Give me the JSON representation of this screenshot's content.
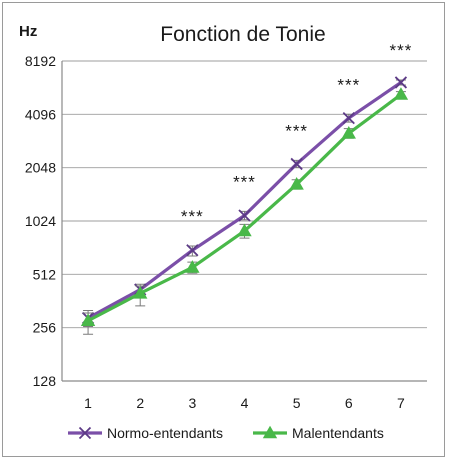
{
  "chart_data": {
    "type": "line",
    "title": "Fonction de Tonie",
    "ylabel": "Hz",
    "xlabel": "",
    "y_scale": "log2",
    "ylim": [
      128,
      8192
    ],
    "y_ticks": [
      "128",
      "256",
      "512",
      "1024",
      "2048",
      "4096",
      "8192"
    ],
    "y_tick_values": [
      128,
      256,
      512,
      1024,
      2048,
      4096,
      8192
    ],
    "x": [
      1,
      2,
      3,
      4,
      5,
      6,
      7
    ],
    "x_ticks": [
      "1",
      "2",
      "3",
      "4",
      "5",
      "6",
      "7"
    ],
    "grid": "horizontal",
    "legend_position": "bottom",
    "series": [
      {
        "name": "Normo-entendants",
        "color": "#7b4fa8",
        "marker": "x",
        "values": [
          290,
          420,
          700,
          1100,
          2150,
          3900,
          6200
        ],
        "err_low": [
          260,
          380,
          650,
          1040,
          2050,
          3700,
          6000
        ],
        "err_high": [
          320,
          450,
          740,
          1160,
          2250,
          4100,
          6400
        ]
      },
      {
        "name": "Malentendants",
        "color": "#49b849",
        "marker": "triangle",
        "values": [
          280,
          400,
          560,
          900,
          1650,
          3200,
          5300
        ],
        "err_low": [
          235,
          340,
          520,
          820,
          1550,
          3000,
          5100
        ],
        "err_high": [
          310,
          440,
          600,
          980,
          1750,
          3400,
          5500
        ]
      }
    ],
    "annotations": [
      {
        "x": 3,
        "text": "***"
      },
      {
        "x": 4,
        "text": "***"
      },
      {
        "x": 5,
        "text": "***"
      },
      {
        "x": 6,
        "text": "***"
      },
      {
        "x": 7,
        "text": "***"
      }
    ]
  }
}
